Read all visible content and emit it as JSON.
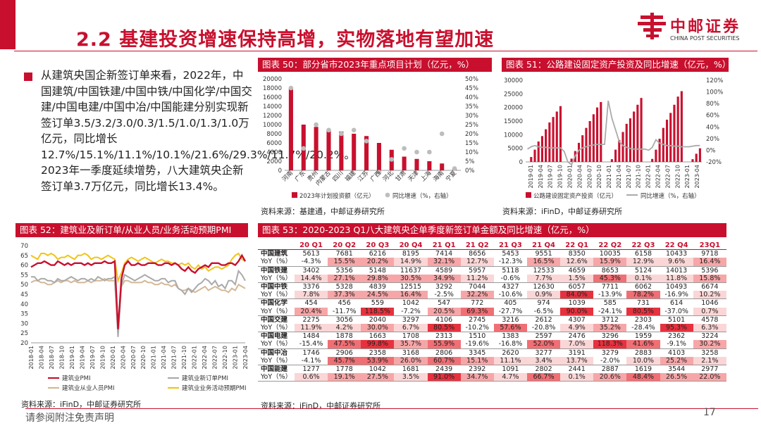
{
  "slide": {
    "title": "2.2 基建投资增速保持高增，实物落地有望加速",
    "page_number": "17",
    "footer": "请参阅附注免责声明",
    "accent_color": "#c8102e"
  },
  "logo": {
    "name": "中邮证券",
    "sub": "CHINA POST SECURITIES"
  },
  "bullet_text": "从建筑央国企新签订单来看，2022年，中国建筑/中国铁建/中国中铁/中国化学/中国交建/中国电建/中国中冶/中国能建分别实现新签订单3.5/3.2/3.0/0.3/1.5/1.0/1.3/1.0万亿元，同比增长12.7%/15.1%/11.1%/10.1%/21.6%/29.3%/11.7%/20.2%。2023年一季度延续增势，八大建筑央企新签订单3.7万亿元，同比增长13.4%。",
  "fig50": {
    "header": "图表 50：部分省市2023年重点项目计划（亿元，%）",
    "source": "资料来源：基建通，中邮证券研究所",
    "legend_bar": "2023年计划投资额（亿元）",
    "legend_dot": "同比增速（%，右轴）"
  },
  "fig51": {
    "header": "图表 51：公路建设固定资产投资及同比增速（亿元，%）",
    "source": "资料来源：iFinD，中邮证券研究所",
    "legend_bar": "公路建设固定资产投资（亿元）",
    "legend_line": "同比增速（%，右轴）"
  },
  "fig52": {
    "header": "图表 52：建筑业及新订单/从业人员/业务活动预期PMI",
    "source": "资料来源：iFinD，中邮证券研究所"
  },
  "fig53": {
    "header": "图表 53：2020-2023 Q1八大建筑央企单季度新签订单金额及同比增速（亿元，%）",
    "source": "资料来源：iFinD，中邮证券研究所"
  },
  "chart_data": [
    {
      "id": "fig50",
      "type": "bar",
      "categories": [
        "河南",
        "广东",
        "贵州",
        "内蒙古",
        "四川",
        "福建",
        "江苏",
        "广西",
        "河北",
        "甘肃",
        "天津",
        "上海",
        "海南",
        "宁夏"
      ],
      "series": [
        {
          "name": "2023年计划投资额（亿元）",
          "axis": "left",
          "values": [
            18000,
            10000,
            9500,
            9000,
            8500,
            8000,
            7500,
            6000,
            4500,
            3000,
            2500,
            2000,
            1500,
            500
          ]
        },
        {
          "name": "同比增速（%，右轴）",
          "axis": "right",
          "marker": "dot",
          "values": [
            45,
            12,
            25,
            22,
            20,
            22,
            16,
            -1,
            6,
            12,
            10,
            10,
            20,
            1
          ]
        }
      ],
      "ylim_left": [
        0,
        20000
      ],
      "yticks_left": [
        "0",
        "2000",
        "4000",
        "6000",
        "8000",
        "10000",
        "12000",
        "14000",
        "16000",
        "18000",
        "20000"
      ],
      "ylim_right": [
        0,
        50
      ],
      "yticks_right": [
        "0%",
        "5%",
        "10%",
        "15%",
        "20%",
        "25%",
        "30%",
        "35%",
        "40%",
        "45%",
        "50%"
      ]
    },
    {
      "id": "fig51",
      "type": "bar",
      "x_tick_labels": [
        "2019-01",
        "2019-04",
        "2019-07",
        "2019-10",
        "2020-01",
        "2020-04",
        "2020-07",
        "2020-10",
        "2021-01",
        "2021-04",
        "2021-07",
        "2021-10",
        "2022-01",
        "2022-04",
        "2022-07",
        "2022-10",
        "2023-01",
        "2023-04"
      ],
      "series": [
        {
          "name": "公路建设固定资产投资（亿元）",
          "axis": "left",
          "values": [
            0,
            1800,
            4500,
            7500,
            9500,
            12000,
            14500,
            16500,
            18500,
            20500,
            0,
            0,
            1200,
            4000,
            7000,
            9800,
            12500,
            15000,
            17500,
            20000,
            22000,
            0,
            0,
            1000,
            4500,
            8000,
            11000,
            14000,
            16000,
            18500,
            21000,
            23500,
            0,
            0,
            1100,
            4500,
            8500,
            12500,
            15500,
            18000,
            21000,
            24000,
            26000,
            0,
            0,
            1000,
            3000,
            5000
          ]
        },
        {
          "name": "同比增速（%，右轴）",
          "axis": "right",
          "type": "line",
          "values": [
            2,
            6,
            8,
            6,
            5,
            5,
            4,
            4,
            4,
            4,
            -2,
            -20,
            -25,
            -10,
            0,
            4,
            6,
            8,
            9,
            10,
            10,
            10,
            85,
            55,
            35,
            15,
            8,
            5,
            3,
            2,
            2,
            2,
            2,
            0,
            5,
            18,
            12,
            10,
            8,
            8,
            7,
            7,
            6,
            6,
            6,
            7,
            8,
            8
          ]
        }
      ],
      "ylim_left": [
        0,
        30000
      ],
      "yticks_left": [
        "0",
        "5000",
        "10000",
        "15000",
        "20000",
        "25000",
        "30000"
      ],
      "ylim_right": [
        -20,
        120
      ],
      "yticks_right": [
        "-20%",
        "0%",
        "20%",
        "40%",
        "60%",
        "80%",
        "100%",
        "120%"
      ]
    },
    {
      "id": "fig52",
      "type": "line",
      "x_tick_labels": [
        "2018-01",
        "2018-04",
        "2018-07",
        "2018-10",
        "2019-01",
        "2019-04",
        "2019-07",
        "2019-10",
        "2020-01",
        "2020-04",
        "2020-07",
        "2020-10",
        "2021-01",
        "2021-04",
        "2021-07",
        "2021-10",
        "2022-01",
        "2022-04",
        "2022-07",
        "2022-10",
        "2023-01",
        "2023-04"
      ],
      "ylim": [
        20,
        70
      ],
      "yticks": [
        "20",
        "25",
        "30",
        "35",
        "40",
        "45",
        "50",
        "55",
        "60",
        "65",
        "70"
      ],
      "series": [
        {
          "name": "建筑业PMI",
          "color": "#c8102e",
          "values": [
            59,
            60,
            61,
            61,
            62,
            61,
            60,
            60,
            62,
            61,
            60,
            61,
            60,
            61,
            61,
            61,
            60,
            61,
            60,
            61,
            61,
            61,
            62,
            61,
            61,
            62,
            27,
            53,
            60,
            62,
            60,
            60,
            61,
            60,
            60,
            61,
            61,
            61,
            60,
            60,
            61,
            61,
            60,
            61,
            60,
            58,
            57,
            59,
            57,
            56,
            58,
            59,
            60,
            59,
            61,
            61,
            61,
            60,
            60,
            61,
            61,
            60,
            62,
            65,
            62
          ]
        },
        {
          "name": "建筑业新订单PMI",
          "color": "#aaaaaa",
          "values": [
            54,
            54,
            52,
            53,
            53,
            52,
            52,
            51,
            53,
            52,
            52,
            53,
            54,
            53,
            52,
            53,
            53,
            52,
            53,
            52,
            54,
            53,
            52,
            53,
            53,
            54,
            23,
            50,
            55,
            54,
            53,
            52,
            53,
            54,
            55,
            54,
            53,
            52,
            52,
            53,
            53,
            51,
            52,
            52,
            48,
            47,
            45,
            48,
            46,
            48,
            50,
            51,
            53,
            52,
            50,
            52,
            49,
            50,
            48,
            52,
            52,
            50,
            57,
            55,
            52
          ]
        },
        {
          "name": "建筑业从业人员PMI",
          "color": "#d4b896",
          "values": [
            51,
            52,
            52,
            51,
            51,
            50,
            50,
            51,
            52,
            51,
            52,
            52,
            51,
            52,
            51,
            51,
            51,
            52,
            51,
            52,
            52,
            52,
            53,
            52,
            52,
            52,
            25,
            49,
            52,
            52,
            51,
            51,
            51,
            51,
            52,
            51,
            51,
            50,
            50,
            51,
            50,
            50,
            49,
            50,
            48,
            47,
            47,
            48,
            47,
            46,
            47,
            48,
            49,
            47,
            48,
            49,
            48,
            47,
            47,
            46,
            48,
            47,
            50,
            49,
            48
          ]
        },
        {
          "name": "建筑业业务活动预期PMI",
          "color": "#f0c419",
          "values": [
            65,
            64,
            63,
            66,
            66,
            65,
            66,
            65,
            63,
            64,
            64,
            65,
            64,
            63,
            65,
            65,
            66,
            65,
            63,
            64,
            64,
            63,
            64,
            65,
            64,
            63,
            52,
            56,
            61,
            63,
            64,
            63,
            62,
            63,
            64,
            63,
            62,
            61,
            62,
            63,
            62,
            62,
            61,
            61,
            60,
            61,
            60,
            61,
            59,
            58,
            60,
            58,
            59,
            57,
            58,
            59,
            59,
            58,
            59,
            60,
            63,
            65,
            66,
            63,
            62
          ]
        }
      ]
    },
    {
      "id": "fig53",
      "type": "table",
      "columns": [
        "20 Q1",
        "20 Q2",
        "20 Q3",
        "20 Q4",
        "21 Q1",
        "21 Q2",
        "21 Q3",
        "21 Q4",
        "22 Q1",
        "22 Q2",
        "22 Q3",
        "22 Q4",
        "23Q1"
      ],
      "yoy_label": "YoY（%）",
      "rows": [
        {
          "company": "中国建筑",
          "values": [
            "5613",
            "7681",
            "6216",
            "8195",
            "7414",
            "8656",
            "5453",
            "9551",
            "8350",
            "10035",
            "6158",
            "10433",
            "9718"
          ],
          "yoy": [
            "-4.3%",
            "15.5%",
            "20.2%",
            "14.9%",
            "32.1%",
            "12.7%",
            "-12.3%",
            "16.5%",
            "12.6%",
            "15.9%",
            "12.9%",
            "9.6%",
            "16.4%"
          ],
          "yoy_num": [
            -4.3,
            15.5,
            20.2,
            14.9,
            32.1,
            12.7,
            -12.3,
            16.5,
            12.6,
            15.9,
            12.9,
            9.6,
            16.4
          ]
        },
        {
          "company": "中国铁建",
          "values": [
            "3402",
            "5356",
            "5148",
            "11637",
            "4589",
            "5957",
            "5118",
            "12533",
            "4659",
            "8653",
            "5124",
            "14013",
            "5396"
          ],
          "yoy": [
            "14.4%",
            "27.1%",
            "29.8%",
            "30.5%",
            "34.9%",
            "11.2%",
            "-0.6%",
            "7.7%",
            "1.5%",
            "45.3%",
            "0.1%",
            "11.8%",
            "15.8%"
          ],
          "yoy_num": [
            14.4,
            27.1,
            29.8,
            30.5,
            34.9,
            11.2,
            -0.6,
            7.7,
            1.5,
            45.3,
            0.1,
            11.8,
            15.8
          ]
        },
        {
          "company": "中国中铁",
          "values": [
            "3376",
            "5328",
            "4839",
            "12515",
            "3292",
            "7044",
            "4327",
            "12630",
            "6057",
            "7711",
            "6062",
            "10493",
            "6674"
          ],
          "yoy": [
            "7.8%",
            "37.3%",
            "24.5%",
            "16.4%",
            "-2.5%",
            "32.2%",
            "-10.6%",
            "0.9%",
            "84.0%",
            "-13.9%",
            "78.2%",
            "-16.9%",
            "10.2%"
          ],
          "yoy_num": [
            7.8,
            37.3,
            24.5,
            16.4,
            -2.5,
            32.2,
            -10.6,
            0.9,
            84.0,
            -13.9,
            78.2,
            -16.9,
            10.2
          ]
        },
        {
          "company": "中国化学",
          "values": [
            "454",
            "456",
            "559",
            "1042",
            "547",
            "772",
            "405",
            "974",
            "1039",
            "585",
            "731",
            "614",
            "1046"
          ],
          "yoy": [
            "20.4%",
            "-11.7%",
            "118.5%",
            "-7.2%",
            "20.5%",
            "69.3%",
            "-27.7%",
            "-6.5%",
            "90.0%",
            "-24.1%",
            "80.5%",
            "-37.0%",
            "0.7%"
          ],
          "yoy_num": [
            20.4,
            -11.7,
            118.5,
            -7.2,
            20.5,
            69.3,
            -27.7,
            -6.5,
            90.0,
            -24.1,
            80.5,
            -37.0,
            0.7
          ]
        },
        {
          "company": "中国交建",
          "values": [
            "2275",
            "3056",
            "2040",
            "3297",
            "4106",
            "2745",
            "3216",
            "2612",
            "4307",
            "3712",
            "2303",
            "5101",
            "4578"
          ],
          "yoy": [
            "11.9%",
            "4.2%",
            "30.0%",
            "6.7%",
            "80.5%",
            "-10.2%",
            "57.6%",
            "-20.8%",
            "4.9%",
            "35.2%",
            "-28.4%",
            "95.3%",
            "6.3%"
          ],
          "yoy_num": [
            11.9,
            4.2,
            30.0,
            6.7,
            80.5,
            -10.2,
            57.6,
            -20.8,
            4.9,
            35.2,
            -28.4,
            95.3,
            6.3
          ]
        },
        {
          "company": "中国电建",
          "values": [
            "1484",
            "1878",
            "1663",
            "1708",
            "2313",
            "1510",
            "1383",
            "2597",
            "2476",
            "3296",
            "1959",
            "2362",
            "3224"
          ],
          "yoy": [
            "-15.4%",
            "47.5%",
            "99.8%",
            "35.7%",
            "55.9%",
            "-19.6%",
            "-16.8%",
            "52.0%",
            "7.0%",
            "118.3%",
            "41.6%",
            "-9.1%",
            "30.2%"
          ],
          "yoy_num": [
            -15.4,
            47.5,
            99.8,
            35.7,
            55.9,
            -19.6,
            -16.8,
            52.0,
            7.0,
            118.3,
            41.6,
            -9.1,
            30.2
          ]
        },
        {
          "company": "中国中冶",
          "values": [
            "1746",
            "2906",
            "2358",
            "3168",
            "2806",
            "3345",
            "2620",
            "3277",
            "3191",
            "3279",
            "2883",
            "4103",
            "3258"
          ],
          "yoy": [
            "-4.1%",
            "45.7%",
            "53.9%",
            "26.0%",
            "60.7%",
            "15.1%",
            "11.1%",
            "3.4%",
            "13.7%",
            "-2.0%",
            "10.0%",
            "25.2%",
            "2.1%"
          ],
          "yoy_num": [
            -4.1,
            45.7,
            53.9,
            26.0,
            60.7,
            15.1,
            11.1,
            3.4,
            13.7,
            -2.0,
            10.0,
            25.2,
            2.1
          ]
        },
        {
          "company": "中国能建",
          "values": [
            "1277",
            "1778",
            "1042",
            "1681",
            "2439",
            "2392",
            "1091",
            "2802",
            "2441",
            "2887",
            "1619",
            "3544",
            "2977"
          ],
          "yoy": [
            "0.6%",
            "19.1%",
            "27.5%",
            "3.5%",
            "91.0%",
            "34.7%",
            "4.7%",
            "66.7%",
            "0.1%",
            "20.6%",
            "48.4%",
            "26.5%",
            "22.0%"
          ],
          "yoy_num": [
            0.6,
            19.1,
            27.5,
            3.5,
            91.0,
            34.7,
            4.7,
            66.7,
            0.1,
            20.6,
            48.4,
            26.5,
            22.0
          ]
        }
      ]
    }
  ]
}
